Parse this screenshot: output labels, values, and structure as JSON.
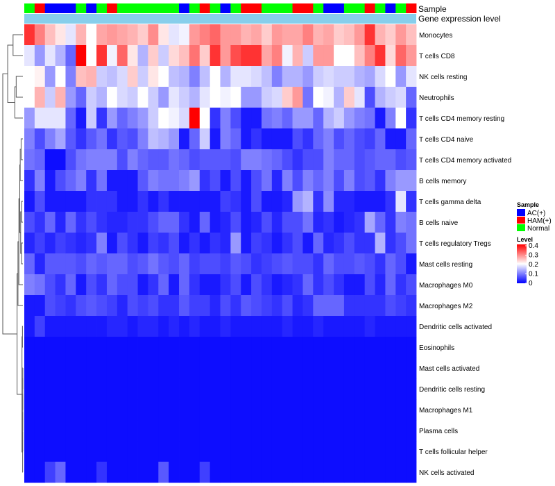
{
  "chart_data": {
    "type": "heatmap",
    "annotation_rows": [
      "Sample",
      "Gene expression level"
    ],
    "annotation_colors": {
      "Gene expression level": "#87CEEB"
    },
    "sample_groups": [
      2,
      1,
      0,
      0,
      0,
      2,
      0,
      2,
      1,
      2,
      2,
      2,
      2,
      2,
      2,
      0,
      2,
      1,
      2,
      0,
      2,
      1,
      1,
      2,
      2,
      2,
      1,
      1,
      2,
      0,
      0,
      2,
      2,
      1,
      2,
      0,
      2,
      1
    ],
    "legend_sample": {
      "title": "Sample",
      "entries": [
        {
          "label": "AC(+)",
          "color": "#0000FF"
        },
        {
          "label": "HAM(+)",
          "color": "#FF0000"
        },
        {
          "label": "Normal",
          "color": "#00FF00"
        }
      ]
    },
    "legend_level": {
      "title": "Level",
      "ticks": [
        "0.4",
        "0.3",
        "0.2",
        "0.1",
        "0"
      ],
      "min": 0,
      "max": 0.4
    },
    "rows": [
      "Monocytes",
      "T cells CD8",
      "NK cells resting",
      "Neutrophils",
      "T cells CD4 memory resting",
      "T cells CD4 naive",
      "T cells CD4 memory activated",
      "B cells memory",
      "T cells gamma delta",
      "B cells naive",
      "T cells regulatory  Tregs",
      "Mast cells resting",
      "Macrophages M0",
      "Macrophages M2",
      "Dendritic cells activated",
      "Eosinophils",
      "Mast cells activated",
      "Dendritic cells resting",
      "Macrophages M1",
      "Plasma cells",
      "T cells follicular helper",
      "NK cells activated"
    ],
    "values": [
      [
        0.36,
        0.3,
        0.25,
        0.22,
        0.18,
        0.26,
        0.2,
        0.27,
        0.28,
        0.27,
        0.26,
        0.24,
        0.29,
        0.22,
        0.18,
        0.19,
        0.28,
        0.3,
        0.32,
        0.28,
        0.28,
        0.26,
        0.27,
        0.24,
        0.28,
        0.27,
        0.27,
        0.3,
        0.26,
        0.27,
        0.24,
        0.25,
        0.28,
        0.36,
        0.26,
        0.24,
        0.28,
        0.25
      ],
      [
        0.18,
        0.12,
        0.18,
        0.14,
        0.08,
        0.4,
        0.2,
        0.36,
        0.19,
        0.32,
        0.22,
        0.14,
        0.24,
        0.16,
        0.23,
        0.25,
        0.31,
        0.24,
        0.36,
        0.28,
        0.34,
        0.36,
        0.36,
        0.27,
        0.3,
        0.19,
        0.26,
        0.16,
        0.28,
        0.28,
        0.2,
        0.2,
        0.25,
        0.3,
        0.36,
        0.23,
        0.32,
        0.28
      ],
      [
        0.2,
        0.21,
        0.12,
        0.2,
        0.1,
        0.25,
        0.26,
        0.16,
        0.15,
        0.17,
        0.24,
        0.16,
        0.22,
        0.2,
        0.15,
        0.14,
        0.1,
        0.15,
        0.2,
        0.14,
        0.18,
        0.18,
        0.17,
        0.15,
        0.1,
        0.14,
        0.14,
        0.12,
        0.16,
        0.17,
        0.16,
        0.16,
        0.14,
        0.13,
        0.17,
        0.2,
        0.12,
        0.18
      ],
      [
        0.2,
        0.26,
        0.16,
        0.26,
        0.12,
        0.08,
        0.16,
        0.14,
        0.2,
        0.17,
        0.16,
        0.2,
        0.16,
        0.12,
        0.18,
        0.16,
        0.14,
        0.18,
        0.2,
        0.19,
        0.2,
        0.12,
        0.12,
        0.16,
        0.17,
        0.24,
        0.28,
        0.09,
        0.2,
        0.19,
        0.14,
        0.24,
        0.18,
        0.06,
        0.14,
        0.16,
        0.17,
        0.08
      ],
      [
        0.12,
        0.18,
        0.18,
        0.18,
        0.08,
        0.02,
        0.16,
        0.04,
        0.12,
        0.08,
        0.1,
        0.12,
        0.16,
        0.2,
        0.19,
        0.17,
        0.4,
        0.2,
        0.04,
        0.1,
        0.06,
        0.02,
        0.02,
        0.09,
        0.1,
        0.08,
        0.12,
        0.12,
        0.08,
        0.14,
        0.16,
        0.12,
        0.1,
        0.09,
        0.02,
        0.1,
        0.2,
        0.04
      ],
      [
        0.1,
        0.06,
        0.1,
        0.13,
        0.07,
        0.04,
        0.07,
        0.09,
        0.04,
        0.07,
        0.06,
        0.1,
        0.15,
        0.14,
        0.12,
        0.02,
        0.08,
        0.16,
        0.02,
        0.1,
        0.08,
        0.02,
        0.04,
        0.02,
        0.02,
        0.02,
        0.06,
        0.04,
        0.08,
        0.1,
        0.06,
        0.08,
        0.06,
        0.05,
        0.08,
        0.02,
        0.02,
        0.08
      ],
      [
        0.09,
        0.08,
        0.01,
        0.01,
        0.06,
        0.09,
        0.1,
        0.1,
        0.1,
        0.06,
        0.1,
        0.08,
        0.07,
        0.07,
        0.09,
        0.08,
        0.06,
        0.07,
        0.07,
        0.07,
        0.06,
        0.1,
        0.1,
        0.09,
        0.08,
        0.06,
        0.04,
        0.06,
        0.06,
        0.1,
        0.08,
        0.08,
        0.06,
        0.07,
        0.08,
        0.08,
        0.06,
        0.07
      ],
      [
        0.04,
        0.1,
        0.02,
        0.06,
        0.08,
        0.1,
        0.04,
        0.09,
        0.02,
        0.02,
        0.02,
        0.07,
        0.1,
        0.09,
        0.09,
        0.1,
        0.12,
        0.04,
        0.06,
        0.02,
        0.06,
        0.02,
        0.06,
        0.09,
        0.03,
        0.1,
        0.06,
        0.1,
        0.08,
        0.1,
        0.06,
        0.1,
        0.06,
        0.07,
        0.04,
        0.1,
        0.12,
        0.12
      ],
      [
        0.02,
        0.06,
        0.02,
        0.02,
        0.02,
        0.02,
        0.04,
        0.04,
        0.04,
        0.02,
        0.02,
        0.04,
        0.02,
        0.04,
        0.02,
        0.02,
        0.02,
        0.02,
        0.02,
        0.05,
        0.04,
        0.02,
        0.06,
        0.02,
        0.02,
        0.03,
        0.12,
        0.14,
        0.04,
        0.11,
        0.03,
        0.03,
        0.02,
        0.02,
        0.02,
        0.04,
        0.18,
        0.04
      ],
      [
        0.06,
        0.04,
        0.08,
        0.03,
        0.08,
        0.04,
        0.06,
        0.04,
        0.03,
        0.03,
        0.04,
        0.04,
        0.06,
        0.08,
        0.08,
        0.04,
        0.02,
        0.08,
        0.02,
        0.03,
        0.06,
        0.02,
        0.03,
        0.06,
        0.03,
        0.06,
        0.06,
        0.09,
        0.03,
        0.04,
        0.02,
        0.03,
        0.04,
        0.13,
        0.08,
        0.04,
        0.1,
        0.09
      ],
      [
        0.03,
        0.05,
        0.03,
        0.05,
        0.04,
        0.03,
        0.04,
        0.1,
        0.02,
        0.06,
        0.04,
        0.02,
        0.05,
        0.04,
        0.06,
        0.02,
        0.04,
        0.02,
        0.04,
        0.03,
        0.12,
        0.02,
        0.05,
        0.04,
        0.02,
        0.04,
        0.06,
        0.02,
        0.08,
        0.03,
        0.04,
        0.06,
        0.04,
        0.04,
        0.14,
        0.04,
        0.06,
        0.09
      ],
      [
        0.08,
        0.03,
        0.07,
        0.07,
        0.07,
        0.06,
        0.08,
        0.07,
        0.08,
        0.08,
        0.06,
        0.07,
        0.09,
        0.07,
        0.06,
        0.08,
        0.05,
        0.06,
        0.06,
        0.05,
        0.07,
        0.06,
        0.04,
        0.05,
        0.06,
        0.07,
        0.06,
        0.06,
        0.04,
        0.08,
        0.06,
        0.06,
        0.07,
        0.06,
        0.04,
        0.08,
        0.06,
        0.02
      ],
      [
        0.1,
        0.09,
        0.06,
        0.04,
        0.08,
        0.02,
        0.06,
        0.04,
        0.08,
        0.06,
        0.06,
        0.02,
        0.04,
        0.08,
        0.02,
        0.08,
        0.04,
        0.02,
        0.02,
        0.04,
        0.06,
        0.02,
        0.06,
        0.04,
        0.02,
        0.03,
        0.04,
        0.08,
        0.04,
        0.06,
        0.04,
        0.02,
        0.02,
        0.06,
        0.03,
        0.08,
        0.04,
        0.06
      ],
      [
        0.02,
        0.02,
        0.06,
        0.05,
        0.04,
        0.06,
        0.07,
        0.06,
        0.05,
        0.03,
        0.06,
        0.05,
        0.06,
        0.04,
        0.04,
        0.07,
        0.05,
        0.05,
        0.03,
        0.06,
        0.04,
        0.07,
        0.06,
        0.05,
        0.04,
        0.06,
        0.03,
        0.04,
        0.08,
        0.08,
        0.08,
        0.04,
        0.04,
        0.04,
        0.04,
        0.06,
        0.05,
        0.04
      ],
      [
        0.02,
        0.05,
        0.02,
        0.02,
        0.02,
        0.02,
        0.02,
        0.02,
        0.03,
        0.03,
        0.02,
        0.03,
        0.03,
        0.02,
        0.03,
        0.02,
        0.03,
        0.02,
        0.02,
        0.03,
        0.02,
        0.02,
        0.02,
        0.02,
        0.02,
        0.03,
        0.02,
        0.02,
        0.03,
        0.02,
        0.02,
        0.02,
        0.02,
        0.03,
        0.02,
        0.02,
        0.02,
        0.02
      ],
      [
        0.01,
        0.01,
        0.01,
        0.01,
        0.01,
        0.01,
        0.01,
        0.01,
        0.01,
        0.01,
        0.01,
        0.01,
        0.01,
        0.01,
        0.01,
        0.01,
        0.01,
        0.01,
        0.01,
        0.01,
        0.01,
        0.01,
        0.01,
        0.01,
        0.01,
        0.01,
        0.01,
        0.01,
        0.01,
        0.01,
        0.01,
        0.01,
        0.01,
        0.01,
        0.01,
        0.01,
        0.01,
        0.01
      ],
      [
        0.01,
        0.01,
        0.01,
        0.01,
        0.01,
        0.01,
        0.01,
        0.01,
        0.01,
        0.01,
        0.01,
        0.01,
        0.01,
        0.01,
        0.01,
        0.01,
        0.01,
        0.01,
        0.01,
        0.01,
        0.01,
        0.01,
        0.01,
        0.01,
        0.01,
        0.01,
        0.01,
        0.01,
        0.01,
        0.01,
        0.01,
        0.01,
        0.01,
        0.01,
        0.01,
        0.01,
        0.01,
        0.01
      ],
      [
        0.01,
        0.01,
        0.01,
        0.01,
        0.01,
        0.01,
        0.01,
        0.01,
        0.01,
        0.01,
        0.01,
        0.01,
        0.01,
        0.01,
        0.01,
        0.01,
        0.01,
        0.01,
        0.01,
        0.01,
        0.01,
        0.01,
        0.01,
        0.01,
        0.01,
        0.01,
        0.01,
        0.01,
        0.01,
        0.01,
        0.01,
        0.01,
        0.01,
        0.01,
        0.01,
        0.01,
        0.01,
        0.01
      ],
      [
        0.01,
        0.01,
        0.01,
        0.01,
        0.01,
        0.01,
        0.01,
        0.01,
        0.01,
        0.01,
        0.01,
        0.01,
        0.01,
        0.01,
        0.01,
        0.01,
        0.01,
        0.01,
        0.01,
        0.01,
        0.01,
        0.01,
        0.01,
        0.01,
        0.01,
        0.01,
        0.01,
        0.01,
        0.01,
        0.01,
        0.01,
        0.01,
        0.01,
        0.01,
        0.01,
        0.01,
        0.01,
        0.01
      ],
      [
        0.01,
        0.01,
        0.01,
        0.01,
        0.01,
        0.01,
        0.01,
        0.01,
        0.01,
        0.01,
        0.01,
        0.01,
        0.01,
        0.01,
        0.01,
        0.01,
        0.01,
        0.01,
        0.01,
        0.01,
        0.01,
        0.01,
        0.01,
        0.01,
        0.01,
        0.01,
        0.01,
        0.01,
        0.01,
        0.01,
        0.01,
        0.01,
        0.01,
        0.01,
        0.01,
        0.01,
        0.01,
        0.01
      ],
      [
        0.01,
        0.01,
        0.01,
        0.01,
        0.01,
        0.01,
        0.01,
        0.01,
        0.01,
        0.01,
        0.01,
        0.01,
        0.01,
        0.01,
        0.01,
        0.01,
        0.01,
        0.01,
        0.01,
        0.01,
        0.01,
        0.01,
        0.01,
        0.01,
        0.01,
        0.01,
        0.01,
        0.01,
        0.01,
        0.01,
        0.01,
        0.01,
        0.01,
        0.01,
        0.01,
        0.01,
        0.01,
        0.01
      ],
      [
        0.01,
        0.01,
        0.05,
        0.08,
        0.01,
        0.01,
        0.01,
        0.04,
        0.01,
        0.01,
        0.01,
        0.01,
        0.01,
        0.07,
        0.01,
        0.01,
        0.01,
        0.05,
        0.01,
        0.01,
        0.01,
        0.01,
        0.01,
        0.01,
        0.01,
        0.01,
        0.01,
        0.01,
        0.01,
        0.01,
        0.01,
        0.01,
        0.01,
        0.01,
        0.01,
        0.01,
        0.01,
        0.01
      ]
    ],
    "dendrogram_merges": [
      [
        -1,
        -2,
        0.44
      ],
      [
        -3,
        -4,
        0.3
      ],
      [
        2,
        -5,
        0.36
      ],
      [
        1,
        3,
        0.68
      ],
      [
        -6,
        -7,
        0.08
      ],
      [
        5,
        -8,
        0.12
      ],
      [
        -9,
        -10,
        0.06
      ],
      [
        -11,
        -12,
        0.06
      ],
      [
        7,
        8,
        0.1
      ],
      [
        6,
        9,
        0.14
      ],
      [
        10,
        -13,
        0.18
      ],
      [
        11,
        -14,
        0.22
      ],
      [
        -15,
        -16,
        0.02
      ],
      [
        -17,
        -18,
        0.003
      ],
      [
        14,
        -19,
        0.005
      ],
      [
        15,
        -20,
        0.007
      ],
      [
        16,
        -21,
        0.009
      ],
      [
        17,
        -22,
        0.011
      ],
      [
        13,
        18,
        0.04
      ],
      [
        12,
        19,
        0.26
      ],
      [
        4,
        20,
        0.9
      ]
    ]
  }
}
